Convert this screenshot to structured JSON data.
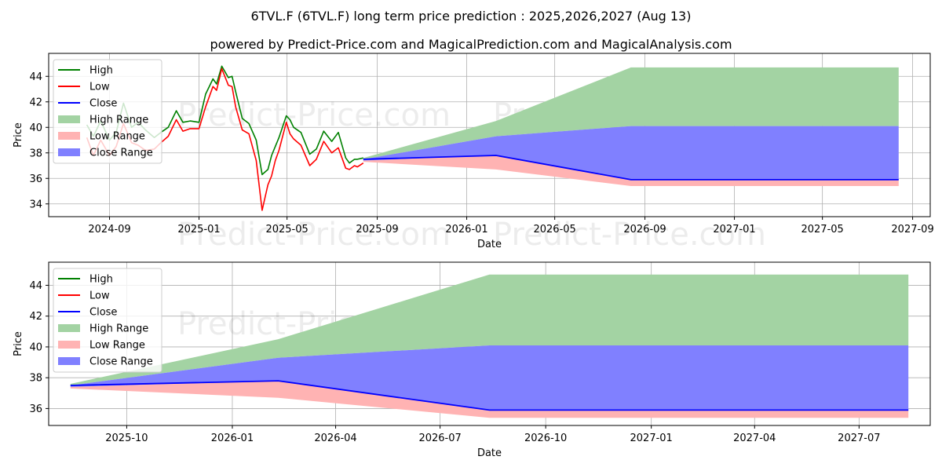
{
  "title": "6TVL.F (6TVL.F) long term price prediction : 2025,2026,2027 (Aug 13)",
  "subtitle": "powered by Predict-Price.com and MagicalPrediction.com and MagicalAnalysis.com",
  "watermark": "Predict-Price.com",
  "colors": {
    "high": "#008000",
    "low": "#ff0000",
    "close": "#0000ff",
    "high_range": "#a3d3a3",
    "low_range": "#ffb3b3",
    "close_range": "#8080ff"
  },
  "legend": [
    "High",
    "Low",
    "Close",
    "High Range",
    "Low Range",
    "Close Range"
  ],
  "chart_data": [
    {
      "type": "line",
      "xlabel": "Date",
      "ylabel": "Price",
      "xlim": [
        "2024-06-10",
        "2027-09-25"
      ],
      "ylim": [
        33,
        45.8
      ],
      "xticks": [
        "2024-09-01",
        "2025-01-01",
        "2025-05-01",
        "2025-09-01",
        "2026-01-01",
        "2026-05-01",
        "2026-09-01",
        "2027-01-01",
        "2027-05-01",
        "2027-09-01"
      ],
      "xtick_labels": [
        "2024-09",
        "2025-01",
        "2025-05",
        "2025-09",
        "2026-01",
        "2026-05",
        "2026-09",
        "2027-01",
        "2027-05",
        "2027-09"
      ],
      "yticks": [
        34,
        36,
        38,
        40,
        42,
        44
      ],
      "history": {
        "dates": [
          "2024-08-01",
          "2024-08-10",
          "2024-08-20",
          "2024-09-01",
          "2024-09-10",
          "2024-09-20",
          "2024-10-01",
          "2024-10-10",
          "2024-10-20",
          "2024-11-01",
          "2024-11-10",
          "2024-11-20",
          "2024-12-01",
          "2024-12-10",
          "2024-12-20",
          "2025-01-01",
          "2025-01-10",
          "2025-01-20",
          "2025-01-25",
          "2025-02-01",
          "2025-02-10",
          "2025-02-15",
          "2025-02-20",
          "2025-03-01",
          "2025-03-10",
          "2025-03-20",
          "2025-03-28",
          "2025-04-05",
          "2025-04-10",
          "2025-04-15",
          "2025-04-20",
          "2025-04-30",
          "2025-05-05",
          "2025-05-10",
          "2025-05-20",
          "2025-06-01",
          "2025-06-10",
          "2025-06-20",
          "2025-07-01",
          "2025-07-10",
          "2025-07-20",
          "2025-07-25",
          "2025-08-01",
          "2025-08-05",
          "2025-08-13"
        ],
        "high": [
          40.2,
          39.3,
          40.5,
          39.0,
          39.6,
          41.9,
          40.0,
          40.4,
          39.8,
          39.2,
          39.6,
          40.0,
          41.3,
          40.4,
          40.5,
          40.4,
          42.6,
          43.8,
          43.4,
          44.8,
          43.9,
          44.0,
          42.8,
          40.7,
          40.3,
          39.0,
          36.3,
          36.7,
          37.8,
          38.5,
          39.2,
          40.9,
          40.6,
          40.0,
          39.6,
          37.9,
          38.3,
          39.7,
          38.9,
          39.6,
          37.6,
          37.2,
          37.5,
          37.5,
          37.6
        ],
        "low": [
          39.2,
          37.8,
          39.0,
          37.8,
          38.5,
          40.3,
          38.8,
          38.6,
          38.2,
          38.3,
          38.8,
          39.3,
          40.6,
          39.7,
          39.9,
          39.9,
          41.6,
          43.2,
          42.9,
          44.6,
          43.3,
          43.2,
          41.6,
          39.8,
          39.5,
          37.4,
          33.5,
          35.5,
          36.2,
          37.4,
          38.2,
          40.4,
          39.5,
          39.1,
          38.6,
          37.0,
          37.5,
          38.9,
          38.0,
          38.4,
          36.8,
          36.7,
          37.0,
          36.9,
          37.2
        ],
        "close": [
          39.7,
          38.5,
          39.7,
          38.4,
          39.0,
          41.1,
          39.4,
          39.5,
          39.0,
          38.8,
          39.2,
          39.6,
          40.9,
          40.0,
          40.2,
          40.1,
          42.1,
          43.5,
          43.1,
          44.7,
          43.6,
          43.6,
          42.2,
          40.2,
          39.9,
          38.2,
          34.9,
          36.1,
          37.0,
          37.9,
          38.7,
          40.6,
          40.0,
          39.5,
          39.1,
          37.4,
          37.9,
          39.3,
          38.4,
          39.0,
          37.2,
          36.9,
          37.2,
          37.2,
          37.4
        ]
      },
      "forecast": {
        "dates": [
          "2025-08-13",
          "2026-02-10",
          "2026-08-13",
          "2027-08-13"
        ],
        "high_range_upper": [
          37.6,
          40.5,
          44.7,
          44.7
        ],
        "high_range_lower": [
          37.5,
          39.3,
          40.1,
          40.1
        ],
        "close_range_upper": [
          37.5,
          39.3,
          40.1,
          40.1
        ],
        "close_range_lower": [
          37.4,
          37.8,
          35.9,
          35.9
        ],
        "low_range_upper": [
          37.4,
          37.8,
          35.9,
          35.9
        ],
        "low_range_lower": [
          37.3,
          36.7,
          35.4,
          35.4
        ],
        "close": [
          37.5,
          37.8,
          35.9,
          35.9
        ]
      }
    },
    {
      "type": "line",
      "xlabel": "Date",
      "ylabel": "Price",
      "xlim": [
        "2025-07-25",
        "2027-09-01"
      ],
      "ylim": [
        34.9,
        45.5
      ],
      "xticks": [
        "2025-10-01",
        "2026-01-01",
        "2026-04-01",
        "2026-07-01",
        "2026-10-01",
        "2027-01-01",
        "2027-04-01",
        "2027-07-01"
      ],
      "xtick_labels": [
        "2025-10",
        "2026-01",
        "2026-04",
        "2026-07",
        "2026-10",
        "2027-01",
        "2027-04",
        "2027-07"
      ],
      "yticks": [
        36,
        38,
        40,
        42,
        44
      ],
      "forecast": {
        "dates": [
          "2025-08-13",
          "2026-02-10",
          "2026-08-13",
          "2027-08-13"
        ],
        "high_range_upper": [
          37.6,
          40.5,
          44.7,
          44.7
        ],
        "high_range_lower": [
          37.5,
          39.3,
          40.1,
          40.1
        ],
        "close_range_upper": [
          37.5,
          39.3,
          40.1,
          40.1
        ],
        "close_range_lower": [
          37.4,
          37.8,
          35.9,
          35.9
        ],
        "low_range_upper": [
          37.4,
          37.8,
          35.9,
          35.9
        ],
        "low_range_lower": [
          37.3,
          36.7,
          35.4,
          35.4
        ],
        "close": [
          37.5,
          37.8,
          35.9,
          35.9
        ]
      }
    }
  ]
}
